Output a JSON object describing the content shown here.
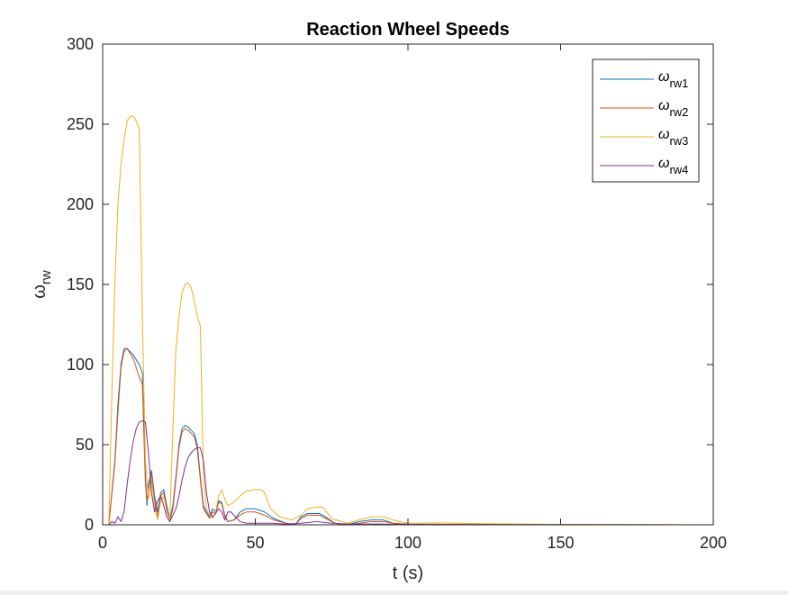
{
  "chart_data": {
    "type": "line",
    "title": "Reaction Wheel Speeds",
    "xlabel": "t (s)",
    "ylabel": "ω",
    "ylabel_sub": "rw",
    "xlim": [
      0,
      200
    ],
    "ylim": [
      0,
      300
    ],
    "xticks": [
      0,
      50,
      100,
      150,
      200
    ],
    "yticks": [
      0,
      50,
      100,
      150,
      200,
      250,
      300
    ],
    "legend_position": "top-right",
    "grid": false,
    "series": [
      {
        "name": "ω",
        "name_sub": "rw1",
        "color": "#0072BD",
        "points": [
          [
            0,
            0
          ],
          [
            2,
            0
          ],
          [
            4,
            40
          ],
          [
            5,
            75
          ],
          [
            6,
            100
          ],
          [
            7,
            110
          ],
          [
            8,
            110
          ],
          [
            10,
            106
          ],
          [
            12,
            100
          ],
          [
            13,
            95
          ],
          [
            14,
            30
          ],
          [
            14.5,
            12
          ],
          [
            15,
            25
          ],
          [
            16,
            34
          ],
          [
            17,
            18
          ],
          [
            18,
            8
          ],
          [
            19,
            20
          ],
          [
            20,
            22
          ],
          [
            21,
            12
          ],
          [
            22,
            3
          ],
          [
            23,
            12
          ],
          [
            24,
            30
          ],
          [
            25,
            50
          ],
          [
            26,
            60
          ],
          [
            27,
            62
          ],
          [
            28,
            61
          ],
          [
            30,
            57
          ],
          [
            31,
            50
          ],
          [
            32,
            30
          ],
          [
            33,
            12
          ],
          [
            34,
            8
          ],
          [
            35,
            5
          ],
          [
            36,
            10
          ],
          [
            37,
            8
          ],
          [
            38,
            15
          ],
          [
            39,
            14
          ],
          [
            40,
            6
          ],
          [
            41,
            2
          ],
          [
            43,
            3
          ],
          [
            45,
            8
          ],
          [
            47,
            10
          ],
          [
            50,
            10
          ],
          [
            53,
            8
          ],
          [
            56,
            4
          ],
          [
            60,
            1
          ],
          [
            63,
            0
          ],
          [
            65,
            5
          ],
          [
            67,
            7
          ],
          [
            71,
            7
          ],
          [
            73,
            5
          ],
          [
            76,
            1
          ],
          [
            80,
            0
          ],
          [
            84,
            2
          ],
          [
            88,
            3
          ],
          [
            92,
            3
          ],
          [
            95,
            1
          ],
          [
            100,
            0.4
          ],
          [
            110,
            0.3
          ],
          [
            120,
            0.2
          ],
          [
            150,
            0.1
          ],
          [
            200,
            0
          ]
        ]
      },
      {
        "name": "ω",
        "name_sub": "rw2",
        "color": "#D95319",
        "points": [
          [
            0,
            0
          ],
          [
            2,
            0
          ],
          [
            4,
            38
          ],
          [
            5,
            70
          ],
          [
            6,
            98
          ],
          [
            7,
            108
          ],
          [
            8,
            110
          ],
          [
            10,
            104
          ],
          [
            12,
            92
          ],
          [
            13,
            88
          ],
          [
            14,
            25
          ],
          [
            14.5,
            15
          ],
          [
            15,
            22
          ],
          [
            16,
            32
          ],
          [
            17,
            15
          ],
          [
            18,
            5
          ],
          [
            19,
            18
          ],
          [
            20,
            20
          ],
          [
            21,
            10
          ],
          [
            22,
            2
          ],
          [
            23,
            10
          ],
          [
            24,
            28
          ],
          [
            25,
            48
          ],
          [
            26,
            58
          ],
          [
            27,
            60
          ],
          [
            28,
            59
          ],
          [
            30,
            55
          ],
          [
            31,
            47
          ],
          [
            32,
            28
          ],
          [
            33,
            10
          ],
          [
            34,
            7
          ],
          [
            35,
            4
          ],
          [
            36,
            8
          ],
          [
            37,
            7
          ],
          [
            38,
            14
          ],
          [
            39,
            13
          ],
          [
            40,
            5
          ],
          [
            41,
            2
          ],
          [
            43,
            3
          ],
          [
            45,
            6
          ],
          [
            47,
            8
          ],
          [
            50,
            8
          ],
          [
            53,
            6
          ],
          [
            56,
            3
          ],
          [
            60,
            1
          ],
          [
            63,
            0
          ],
          [
            65,
            4
          ],
          [
            67,
            6
          ],
          [
            71,
            6
          ],
          [
            73,
            4
          ],
          [
            76,
            1
          ],
          [
            80,
            0
          ],
          [
            84,
            1
          ],
          [
            88,
            2
          ],
          [
            92,
            2
          ],
          [
            95,
            1
          ],
          [
            100,
            0.3
          ],
          [
            120,
            0.2
          ],
          [
            150,
            0.1
          ],
          [
            200,
            0
          ]
        ]
      },
      {
        "name": "ω",
        "name_sub": "rw3",
        "color": "#EDB120",
        "points": [
          [
            0,
            0
          ],
          [
            2,
            0
          ],
          [
            3,
            80
          ],
          [
            4,
            150
          ],
          [
            5,
            200
          ],
          [
            6,
            225
          ],
          [
            7,
            240
          ],
          [
            8,
            252
          ],
          [
            9,
            255
          ],
          [
            10,
            255
          ],
          [
            11,
            252
          ],
          [
            12,
            247
          ],
          [
            13,
            130
          ],
          [
            14,
            40
          ],
          [
            15,
            16
          ],
          [
            16,
            28
          ],
          [
            17,
            12
          ],
          [
            18,
            3
          ],
          [
            19,
            15
          ],
          [
            20,
            18
          ],
          [
            21,
            8
          ],
          [
            22,
            3
          ],
          [
            23,
            60
          ],
          [
            24,
            110
          ],
          [
            25,
            130
          ],
          [
            26,
            145
          ],
          [
            27,
            150
          ],
          [
            28,
            151
          ],
          [
            29,
            148
          ],
          [
            30,
            140
          ],
          [
            31,
            130
          ],
          [
            32,
            124
          ],
          [
            33,
            30
          ],
          [
            34,
            10
          ],
          [
            35,
            6
          ],
          [
            36,
            4
          ],
          [
            37,
            8
          ],
          [
            38,
            18
          ],
          [
            39,
            22
          ],
          [
            40,
            16
          ],
          [
            41,
            12
          ],
          [
            43,
            14
          ],
          [
            45,
            18
          ],
          [
            47,
            21
          ],
          [
            50,
            22
          ],
          [
            52,
            22
          ],
          [
            53,
            20
          ],
          [
            55,
            10
          ],
          [
            58,
            5
          ],
          [
            62,
            3
          ],
          [
            65,
            6
          ],
          [
            67,
            10
          ],
          [
            70,
            11
          ],
          [
            72,
            11
          ],
          [
            73,
            9
          ],
          [
            75,
            4
          ],
          [
            80,
            1
          ],
          [
            84,
            3
          ],
          [
            88,
            5
          ],
          [
            92,
            5
          ],
          [
            95,
            3
          ],
          [
            100,
            1
          ],
          [
            110,
            1.2
          ],
          [
            120,
            0.8
          ],
          [
            150,
            0.3
          ],
          [
            200,
            0
          ]
        ]
      },
      {
        "name": "ω",
        "name_sub": "rw4",
        "color": "#7E2F8E",
        "points": [
          [
            0,
            0
          ],
          [
            2,
            0
          ],
          [
            3,
            2
          ],
          [
            4,
            1
          ],
          [
            5,
            5
          ],
          [
            6,
            2
          ],
          [
            7,
            8
          ],
          [
            8,
            25
          ],
          [
            9,
            40
          ],
          [
            10,
            52
          ],
          [
            11,
            60
          ],
          [
            12,
            64
          ],
          [
            13,
            65
          ],
          [
            14,
            64
          ],
          [
            15,
            45
          ],
          [
            16,
            20
          ],
          [
            17,
            8
          ],
          [
            18,
            15
          ],
          [
            19,
            18
          ],
          [
            20,
            12
          ],
          [
            21,
            5
          ],
          [
            22,
            2
          ],
          [
            23,
            6
          ],
          [
            24,
            10
          ],
          [
            25,
            18
          ],
          [
            26,
            28
          ],
          [
            27,
            36
          ],
          [
            28,
            42
          ],
          [
            29,
            45
          ],
          [
            30,
            47
          ],
          [
            31,
            48
          ],
          [
            32,
            48
          ],
          [
            33,
            40
          ],
          [
            34,
            20
          ],
          [
            35,
            8
          ],
          [
            36,
            5
          ],
          [
            37,
            7
          ],
          [
            38,
            10
          ],
          [
            39,
            8
          ],
          [
            40,
            3
          ],
          [
            41,
            8
          ],
          [
            42,
            8
          ],
          [
            43,
            6
          ],
          [
            45,
            2
          ],
          [
            47,
            1
          ],
          [
            50,
            1
          ],
          [
            55,
            1
          ],
          [
            60,
            0.5
          ],
          [
            65,
            1
          ],
          [
            70,
            2
          ],
          [
            75,
            1
          ],
          [
            80,
            0.5
          ],
          [
            90,
            0.5
          ],
          [
            100,
            0.2
          ],
          [
            150,
            0.1
          ],
          [
            200,
            0
          ]
        ]
      }
    ]
  }
}
